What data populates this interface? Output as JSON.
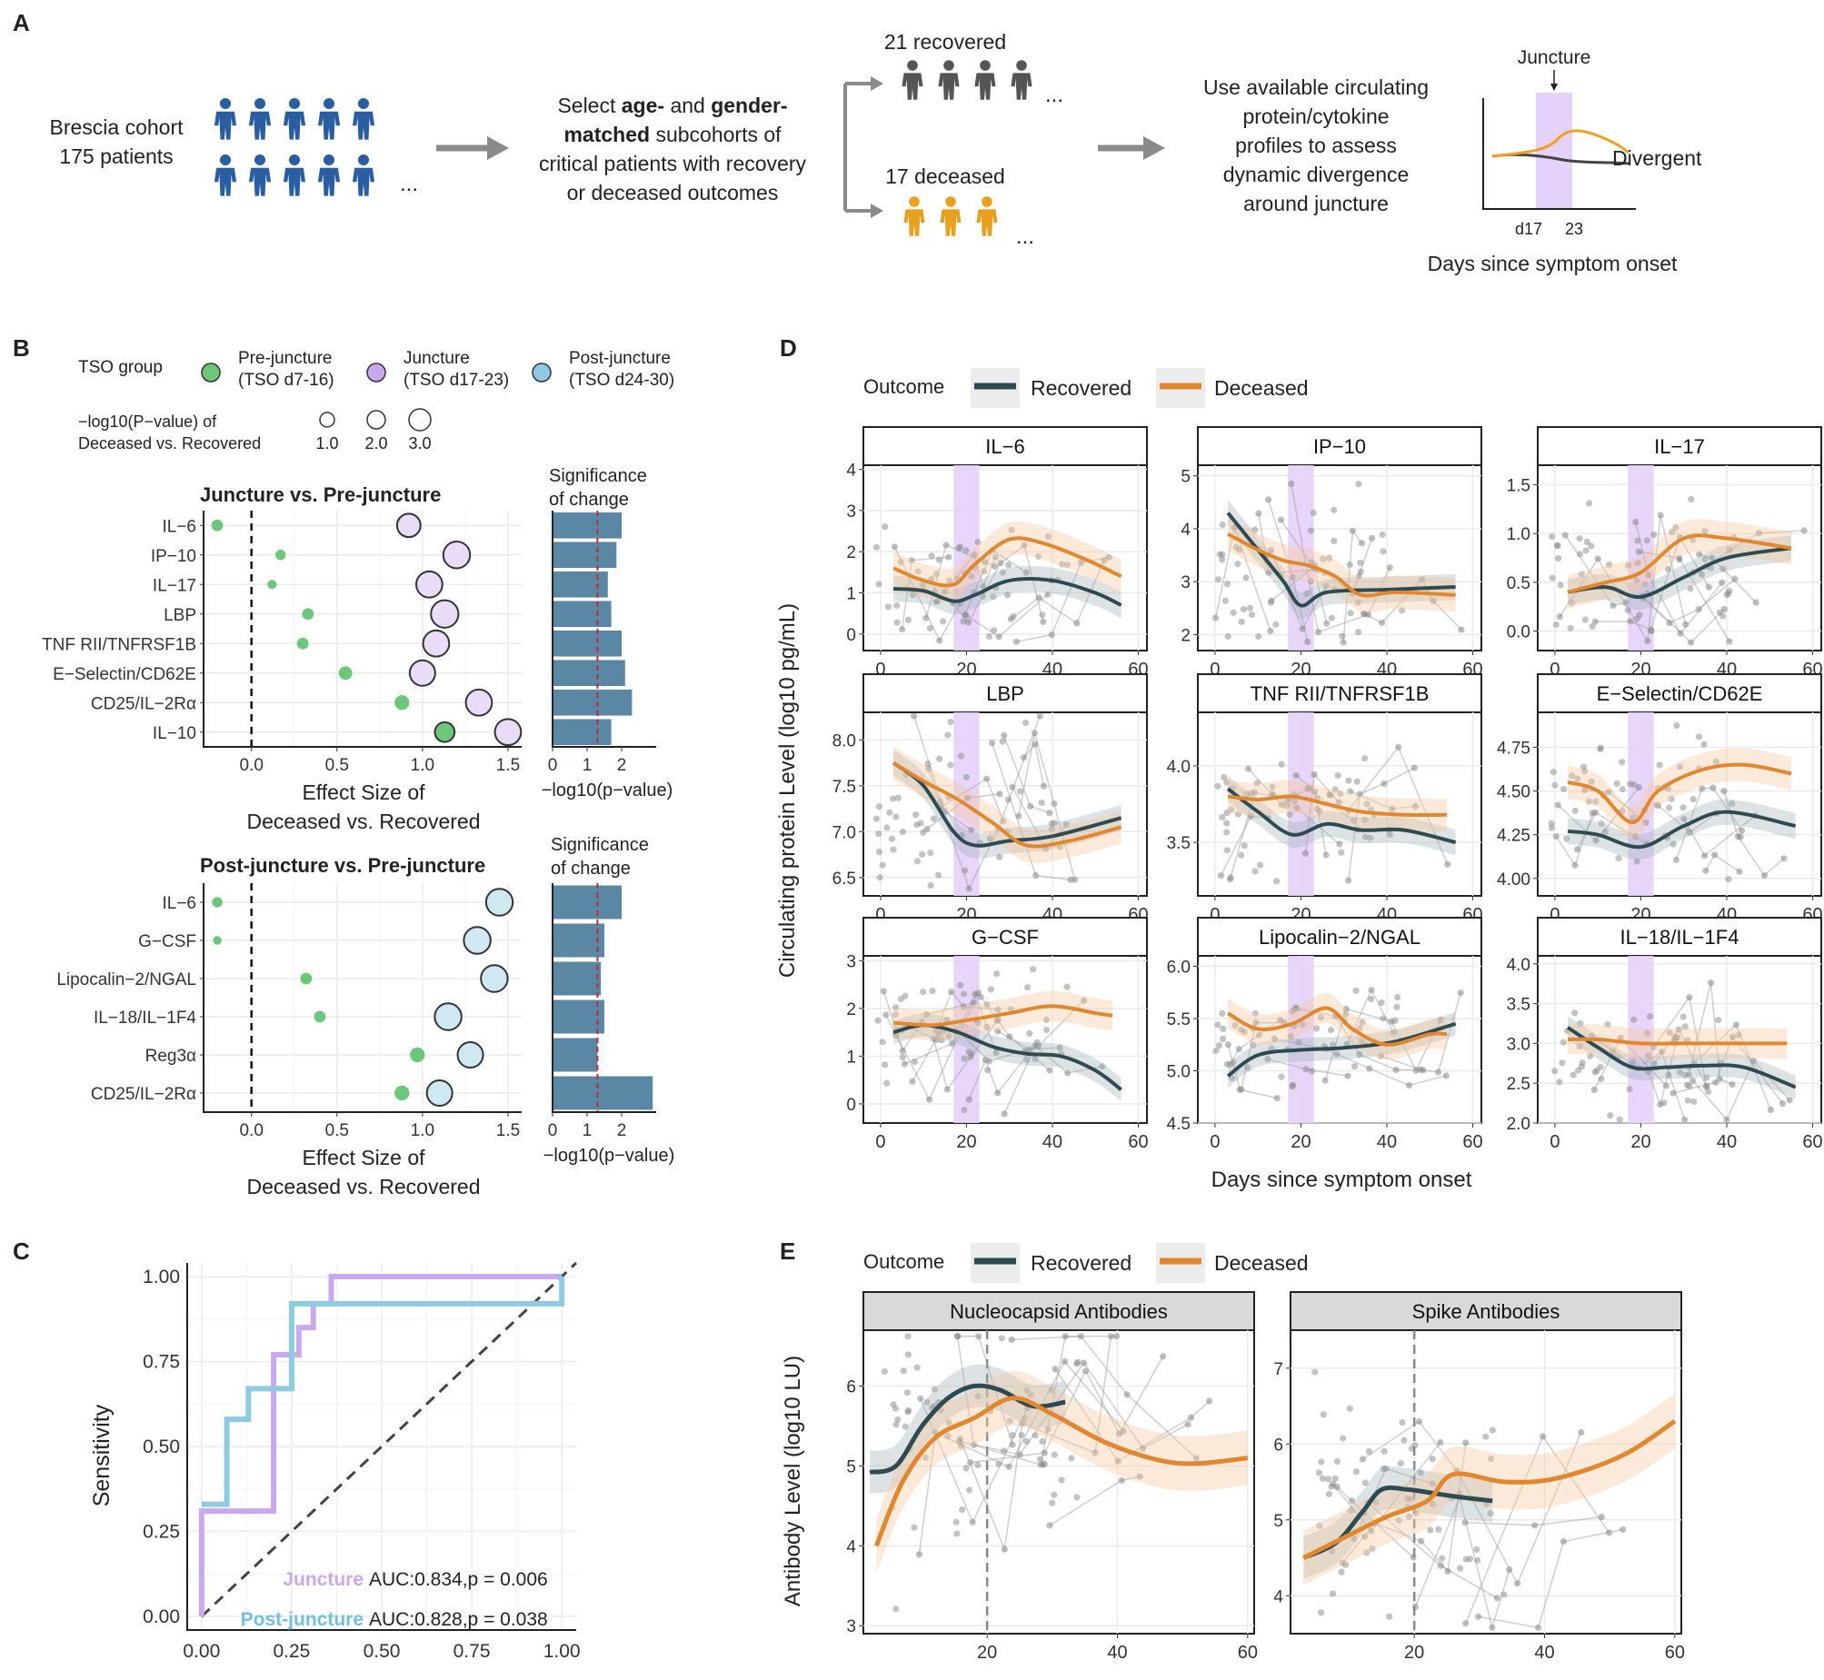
{
  "colors": {
    "recovered": "#2f4b52",
    "deceased": "#e0872f",
    "juncture": "#c9a8ee",
    "post": "#8fcbe0",
    "pre": "#6cc77b",
    "cohort": "#2a5ea0",
    "bar": "#5a87a3",
    "shade": "#e4d2fa",
    "grid": "#ebebeb"
  },
  "panels": {
    "A": "A",
    "B": "B",
    "C": "C",
    "D": "D",
    "E": "E"
  },
  "panelA": {
    "cohort": [
      "Brescia cohort",
      "175 patients"
    ],
    "select": [
      [
        [
          "Select ",
          false
        ],
        [
          "age-",
          true
        ],
        [
          " and ",
          false
        ],
        [
          "gender-",
          true
        ]
      ],
      [
        [
          "matched",
          true
        ],
        [
          " subcohorts of",
          false
        ]
      ],
      [
        [
          "critical patients with recovery",
          false
        ]
      ],
      [
        [
          "or deceased outcomes",
          false
        ]
      ]
    ],
    "recovered": "21 recovered",
    "deceased": "17 deceased",
    "use": [
      "Use available circulating",
      "protein/cytokine",
      "profiles to assess",
      "dynamic divergence",
      "around juncture"
    ],
    "juncture": "Juncture",
    "divergent": "Divergent",
    "d17": "d17",
    "d23": "23",
    "xlabel": "Days since symptom onset",
    "dots": "..."
  },
  "panelB": {
    "legend": {
      "tso_title": "TSO group",
      "pre": [
        "Pre-juncture",
        "(TSO d7-16)"
      ],
      "junc": [
        "Juncture",
        "(TSO d17-23)"
      ],
      "post": [
        "Post-juncture",
        "(TSO d24-30)"
      ],
      "size_title": [
        "−log10(P−value) of",
        "Deceased vs. Recovered"
      ],
      "sizes": [
        "1.0",
        "2.0",
        "3.0"
      ]
    },
    "sig_title": [
      "Significance",
      "of change"
    ],
    "xlab_effect": [
      "Effect Size of",
      "Deceased vs. Recovered"
    ],
    "xlab_p": "−log10(p−value)",
    "top": {
      "title": "Juncture vs. Pre-juncture",
      "xticks": [
        "0.0",
        "0.5",
        "1.0",
        "1.5"
      ],
      "pticks": [
        "0",
        "1",
        "2"
      ],
      "proteins": [
        "IL−6",
        "IP−10",
        "IL−17",
        "LBP",
        "TNF RII/TNFRSF1B",
        "E−Selectin/CD62E",
        "CD25/IL−2Rα",
        "IL−10"
      ],
      "pre": [
        -0.2,
        0.17,
        0.12,
        0.33,
        0.3,
        0.55,
        0.88,
        1.13
      ],
      "pre_size": [
        1.0,
        0.8,
        0.6,
        1.0,
        1.0,
        1.3,
        1.5,
        2.3
      ],
      "post": [
        0.92,
        1.2,
        1.04,
        1.13,
        1.08,
        1.0,
        1.33,
        1.5
      ],
      "post_size": [
        2.2,
        2.7,
        2.6,
        2.8,
        2.6,
        2.5,
        2.6,
        2.6
      ],
      "sig": [
        2.0,
        1.85,
        1.6,
        1.7,
        2.0,
        2.1,
        2.3,
        1.7
      ]
    },
    "bottom": {
      "title": "Post-juncture vs. Pre-juncture",
      "xticks": [
        "0.0",
        "0.5",
        "1.0",
        "1.5"
      ],
      "pticks": [
        "0",
        "1",
        "2"
      ],
      "proteins": [
        "IL−6",
        "G−CSF",
        "Lipocalin−2/NGAL",
        "IL−18/IL−1F4",
        "Reg3α",
        "CD25/IL−2Rα"
      ],
      "pre": [
        -0.2,
        -0.2,
        0.32,
        0.4,
        0.97,
        0.88
      ],
      "pre_size": [
        0.8,
        0.5,
        1.0,
        1.0,
        1.5,
        1.5
      ],
      "post": [
        1.45,
        1.32,
        1.42,
        1.15,
        1.28,
        1.1
      ],
      "post_size": [
        2.7,
        2.7,
        2.7,
        2.7,
        2.5,
        2.5
      ],
      "sig": [
        2.0,
        1.5,
        1.4,
        1.5,
        1.3,
        2.9
      ]
    }
  },
  "panelC": {
    "ylabel": "Sensitivity",
    "ticks": [
      "0.00",
      "0.25",
      "0.50",
      "0.75",
      "1.00"
    ],
    "juncture_label": "Juncture",
    "juncture_stat": "AUC:0.834,p = 0.006",
    "post_label": "Post-juncture",
    "post_stat": "AUC:0.828,p = 0.038",
    "juncture_roc": [
      [
        0,
        0
      ],
      [
        0,
        0.31
      ],
      [
        0.2,
        0.31
      ],
      [
        0.2,
        0.77
      ],
      [
        0.27,
        0.77
      ],
      [
        0.27,
        0.85
      ],
      [
        0.31,
        0.85
      ],
      [
        0.31,
        0.92
      ],
      [
        0.36,
        0.92
      ],
      [
        0.36,
        1.0
      ],
      [
        1.0,
        1.0
      ]
    ],
    "post_roc": [
      [
        0,
        0.33
      ],
      [
        0.07,
        0.33
      ],
      [
        0.07,
        0.58
      ],
      [
        0.13,
        0.58
      ],
      [
        0.13,
        0.67
      ],
      [
        0.25,
        0.67
      ],
      [
        0.25,
        0.92
      ],
      [
        0.38,
        0.92
      ],
      [
        1.0,
        0.92
      ],
      [
        1.0,
        1.0
      ]
    ]
  },
  "panelD": {
    "legend_title": "Outcome",
    "recovered": "Recovered",
    "deceased": "Deceased",
    "ylabel": "Circulating protein Level (log10 pg/mL)",
    "xlabel": "Days since symptom onset",
    "xticks": [
      "0",
      "20",
      "40",
      "60"
    ],
    "facets": [
      {
        "name": "IL−6",
        "ymin": -0.4,
        "ymax": 4.1,
        "yticks": [
          "0",
          "1",
          "2",
          "3",
          "4"
        ],
        "yv": [
          0,
          1,
          2,
          3,
          4
        ],
        "rec": [
          [
            3,
            1.1
          ],
          [
            10,
            1.05
          ],
          [
            17,
            0.8
          ],
          [
            22,
            0.95
          ],
          [
            30,
            1.3
          ],
          [
            40,
            1.3
          ],
          [
            50,
            1.0
          ],
          [
            56,
            0.7
          ]
        ],
        "dec": [
          [
            3,
            1.6
          ],
          [
            10,
            1.3
          ],
          [
            17,
            1.2
          ],
          [
            22,
            1.7
          ],
          [
            30,
            2.3
          ],
          [
            38,
            2.2
          ],
          [
            48,
            1.8
          ],
          [
            56,
            1.4
          ]
        ]
      },
      {
        "name": "IP−10",
        "ymin": 1.7,
        "ymax": 5.2,
        "yticks": [
          "2",
          "3",
          "4",
          "5"
        ],
        "yv": [
          2,
          3,
          4,
          5
        ],
        "rec": [
          [
            3,
            4.3
          ],
          [
            10,
            3.6
          ],
          [
            16,
            3.0
          ],
          [
            20,
            2.55
          ],
          [
            26,
            2.8
          ],
          [
            40,
            2.85
          ],
          [
            56,
            2.9
          ]
        ],
        "dec": [
          [
            3,
            3.9
          ],
          [
            10,
            3.6
          ],
          [
            16,
            3.4
          ],
          [
            22,
            3.3
          ],
          [
            28,
            3.1
          ],
          [
            34,
            2.75
          ],
          [
            42,
            2.8
          ],
          [
            56,
            2.75
          ]
        ]
      },
      {
        "name": "IL−17",
        "ymin": -0.2,
        "ymax": 1.7,
        "yticks": [
          "0.0",
          "0.5",
          "1.0",
          "1.5"
        ],
        "yv": [
          0,
          0.5,
          1,
          1.5
        ],
        "rec": [
          [
            3,
            0.4
          ],
          [
            12,
            0.45
          ],
          [
            20,
            0.35
          ],
          [
            30,
            0.55
          ],
          [
            40,
            0.75
          ],
          [
            55,
            0.85
          ]
        ],
        "dec": [
          [
            3,
            0.4
          ],
          [
            12,
            0.5
          ],
          [
            20,
            0.6
          ],
          [
            30,
            0.95
          ],
          [
            40,
            0.95
          ],
          [
            55,
            0.85
          ]
        ]
      },
      {
        "name": "LBP",
        "ymin": 6.3,
        "ymax": 8.3,
        "yticks": [
          "6.5",
          "7.0",
          "7.5",
          "8.0"
        ],
        "yv": [
          6.5,
          7.0,
          7.5,
          8.0
        ],
        "rec": [
          [
            3,
            7.75
          ],
          [
            10,
            7.5
          ],
          [
            17,
            7.0
          ],
          [
            22,
            6.85
          ],
          [
            30,
            6.9
          ],
          [
            40,
            6.95
          ],
          [
            56,
            7.15
          ]
        ],
        "dec": [
          [
            3,
            7.75
          ],
          [
            10,
            7.55
          ],
          [
            18,
            7.35
          ],
          [
            26,
            7.1
          ],
          [
            34,
            6.85
          ],
          [
            44,
            6.9
          ],
          [
            56,
            7.05
          ]
        ]
      },
      {
        "name": "TNF RII/TNFRSF1B",
        "ymin": 3.15,
        "ymax": 4.35,
        "yticks": [
          "3.5",
          "4.0"
        ],
        "yv": [
          3.5,
          4.0
        ],
        "rec": [
          [
            3,
            3.85
          ],
          [
            10,
            3.7
          ],
          [
            18,
            3.55
          ],
          [
            26,
            3.62
          ],
          [
            34,
            3.58
          ],
          [
            44,
            3.58
          ],
          [
            56,
            3.5
          ]
        ],
        "dec": [
          [
            3,
            3.8
          ],
          [
            10,
            3.78
          ],
          [
            18,
            3.8
          ],
          [
            26,
            3.75
          ],
          [
            34,
            3.7
          ],
          [
            44,
            3.68
          ],
          [
            54,
            3.68
          ]
        ]
      },
      {
        "name": "E−Selectin/CD62E",
        "ymin": 3.9,
        "ymax": 4.95,
        "yticks": [
          "4.00",
          "4.25",
          "4.50",
          "4.75"
        ],
        "yv": [
          4.0,
          4.25,
          4.5,
          4.75
        ],
        "rec": [
          [
            3,
            4.27
          ],
          [
            10,
            4.25
          ],
          [
            20,
            4.18
          ],
          [
            30,
            4.3
          ],
          [
            40,
            4.38
          ],
          [
            56,
            4.3
          ]
        ],
        "dec": [
          [
            3,
            4.55
          ],
          [
            10,
            4.5
          ],
          [
            18,
            4.32
          ],
          [
            24,
            4.5
          ],
          [
            34,
            4.62
          ],
          [
            44,
            4.65
          ],
          [
            55,
            4.6
          ]
        ]
      },
      {
        "name": "G−CSF",
        "ymin": -0.4,
        "ymax": 3.1,
        "yticks": [
          "0",
          "1",
          "2",
          "3"
        ],
        "yv": [
          0,
          1,
          2,
          3
        ],
        "rec": [
          [
            3,
            1.5
          ],
          [
            10,
            1.65
          ],
          [
            18,
            1.5
          ],
          [
            26,
            1.2
          ],
          [
            34,
            1.05
          ],
          [
            42,
            1.0
          ],
          [
            50,
            0.7
          ],
          [
            56,
            0.3
          ]
        ],
        "dec": [
          [
            3,
            1.7
          ],
          [
            12,
            1.65
          ],
          [
            20,
            1.75
          ],
          [
            30,
            1.9
          ],
          [
            40,
            2.05
          ],
          [
            50,
            1.9
          ],
          [
            54,
            1.85
          ]
        ]
      },
      {
        "name": "Lipocalin−2/NGAL",
        "ymin": 4.5,
        "ymax": 6.1,
        "yticks": [
          "4.5",
          "5.0",
          "5.5",
          "6.0"
        ],
        "yv": [
          4.5,
          5.0,
          5.5,
          6.0
        ],
        "rec": [
          [
            3,
            4.95
          ],
          [
            10,
            5.15
          ],
          [
            20,
            5.2
          ],
          [
            30,
            5.22
          ],
          [
            42,
            5.28
          ],
          [
            56,
            5.45
          ]
        ],
        "dec": [
          [
            3,
            5.55
          ],
          [
            10,
            5.4
          ],
          [
            18,
            5.45
          ],
          [
            26,
            5.6
          ],
          [
            32,
            5.4
          ],
          [
            40,
            5.25
          ],
          [
            50,
            5.35
          ],
          [
            54,
            5.35
          ]
        ]
      },
      {
        "name": "IL−18/IL−1F4",
        "ymin": 2.0,
        "ymax": 4.1,
        "yticks": [
          "2.0",
          "2.5",
          "3.0",
          "3.5",
          "4.0"
        ],
        "yv": [
          2.0,
          2.5,
          3.0,
          3.5,
          4.0
        ],
        "rec": [
          [
            3,
            3.2
          ],
          [
            10,
            2.95
          ],
          [
            18,
            2.7
          ],
          [
            26,
            2.7
          ],
          [
            34,
            2.72
          ],
          [
            44,
            2.7
          ],
          [
            56,
            2.45
          ]
        ],
        "dec": [
          [
            3,
            3.05
          ],
          [
            10,
            3.05
          ],
          [
            20,
            3.0
          ],
          [
            30,
            3.0
          ],
          [
            40,
            3.0
          ],
          [
            54,
            3.0
          ]
        ]
      }
    ]
  },
  "panelE": {
    "legend_title": "Outcome",
    "recovered": "Recovered",
    "deceased": "Deceased",
    "ylabel": "Antibody Level (log10 LU)",
    "facets": [
      {
        "name": "Nucleocapsid Antibodies",
        "xmin": 1,
        "xmax": 61,
        "xticks": [
          "20",
          "40",
          "60"
        ],
        "xv": [
          20,
          40,
          60
        ],
        "ymin": 2.9,
        "ymax": 6.7,
        "yticks": [
          "3",
          "4",
          "5",
          "6"
        ],
        "yv": [
          3,
          4,
          5,
          6
        ],
        "rec": [
          [
            2,
            4.92
          ],
          [
            6,
            5.0
          ],
          [
            10,
            5.5
          ],
          [
            14,
            5.85
          ],
          [
            18,
            6.0
          ],
          [
            22,
            5.95
          ],
          [
            27,
            5.75
          ],
          [
            32,
            5.8
          ]
        ],
        "dec": [
          [
            3,
            4.0
          ],
          [
            7,
            4.8
          ],
          [
            12,
            5.35
          ],
          [
            18,
            5.6
          ],
          [
            24,
            5.85
          ],
          [
            30,
            5.65
          ],
          [
            38,
            5.3
          ],
          [
            46,
            5.08
          ],
          [
            52,
            5.03
          ],
          [
            60,
            5.1
          ]
        ]
      },
      {
        "name": "Spike Antibodies",
        "xmin": 1,
        "xmax": 61,
        "xticks": [
          "20",
          "40",
          "60"
        ],
        "xv": [
          20,
          40,
          60
        ],
        "ymin": 3.5,
        "ymax": 7.5,
        "yticks": [
          "4",
          "5",
          "6",
          "7"
        ],
        "yv": [
          4,
          5,
          6,
          7
        ],
        "rec": [
          [
            3,
            4.5
          ],
          [
            8,
            4.7
          ],
          [
            12,
            5.1
          ],
          [
            15,
            5.4
          ],
          [
            19,
            5.4
          ],
          [
            23,
            5.35
          ],
          [
            27,
            5.3
          ],
          [
            32,
            5.25
          ]
        ],
        "dec": [
          [
            3,
            4.5
          ],
          [
            10,
            4.8
          ],
          [
            16,
            5.05
          ],
          [
            22,
            5.25
          ],
          [
            26,
            5.6
          ],
          [
            34,
            5.5
          ],
          [
            42,
            5.55
          ],
          [
            52,
            5.85
          ],
          [
            60,
            6.3
          ]
        ]
      }
    ]
  }
}
